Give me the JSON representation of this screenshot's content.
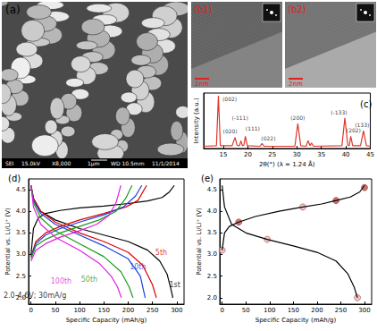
{
  "panels": [
    {
      "title": "(a)",
      "info": [
        "SEI",
        "15.0kV",
        "X8,000",
        "1μm",
        "WD 10.5mm",
        "11/1/2014"
      ]
    },
    {
      "title": "(b1)",
      "scale_bar": "2nm"
    },
    {
      "title": "(b2)",
      "scale_bar": "2nm"
    }
  ],
  "chart_data": [
    {
      "type": "line",
      "title": "(c)",
      "xlabel": "2θ(°) (λ = 1.24 Å)",
      "ylabel": "Intensity (a.u.)",
      "color": "#e0352b",
      "x": [
        11,
        13.6,
        14.0,
        14.4,
        16.8,
        17.4,
        17.8,
        18.3,
        18.6,
        18.9,
        19.2,
        19.5,
        19.9,
        22.5,
        22.9,
        23.3,
        29.6,
        30.2,
        30.8,
        31.9,
        32.3,
        32.7,
        33.0,
        33.4,
        39.2,
        39.8,
        40.4,
        40.7,
        41.0,
        41.4,
        43.0,
        43.6,
        44.2,
        45
      ],
      "values": [
        4,
        5,
        95,
        5,
        5,
        20,
        6,
        5,
        14,
        5,
        6,
        22,
        5,
        4,
        9,
        4,
        4,
        45,
        5,
        4,
        14,
        5,
        10,
        4,
        5,
        55,
        6,
        5,
        22,
        5,
        5,
        32,
        5,
        4
      ],
      "xlim": [
        11,
        45
      ],
      "xticks": [
        15,
        20,
        25,
        30,
        35,
        40,
        45
      ],
      "ylim": [
        0,
        100
      ],
      "tick_labels": "x",
      "annotations": [
        {
          "text": "(002)",
          "x": 16.3,
          "y": 90
        },
        {
          "text": "(020)",
          "x": 16.4,
          "y": 31
        },
        {
          "text": "(111)",
          "x": 21.0,
          "y": 36
        },
        {
          "text": "(-111)",
          "x": 18.4,
          "y": 56
        },
        {
          "text": "(022)",
          "x": 24.2,
          "y": 18
        },
        {
          "text": "(200)",
          "x": 30.2,
          "y": 56
        },
        {
          "text": "(-133)",
          "x": 38.6,
          "y": 66
        },
        {
          "text": "(202)",
          "x": 41.6,
          "y": 33
        },
        {
          "text": "(133)",
          "x": 43.3,
          "y": 43
        }
      ]
    },
    {
      "type": "line",
      "title": "(d)",
      "xlabel": "Specific Capacity (mAh/g)",
      "ylabel": "Potential vs. Li/Li⁺ (V)",
      "xlim": [
        -5,
        315
      ],
      "xticks": [
        0,
        50,
        100,
        150,
        200,
        250,
        300
      ],
      "ylim": [
        1.85,
        4.75
      ],
      "yticks": [
        {
          "value": 2,
          "label": "2.0"
        },
        2.5,
        {
          "value": 3,
          "label": "3.0"
        },
        3.5,
        {
          "value": 4,
          "label": "4.0"
        },
        4.5
      ],
      "annotations": [
        {
          "text": "2.0-4.6V; 30mA/g",
          "x": 8,
          "y": 2.05
        }
      ],
      "series": [
        {
          "name": "1st",
          "color": "#000000",
          "name_at": [
            296,
            2.3
          ],
          "x": [
            0,
            5,
            15,
            30,
            60,
            100,
            150,
            200,
            240,
            270,
            285,
            295,
            295,
            0,
            5,
            20,
            50,
            100,
            150,
            200,
            240,
            265,
            280,
            288,
            292
          ],
          "values": [
            3.0,
            3.6,
            3.85,
            3.95,
            4.02,
            4.08,
            4.12,
            4.18,
            4.24,
            4.32,
            4.45,
            4.6,
            null,
            4.6,
            4.3,
            4.0,
            3.8,
            3.6,
            3.45,
            3.3,
            3.1,
            2.85,
            2.55,
            2.2,
            2.0
          ]
        },
        {
          "name": "5th",
          "color": "#e00000",
          "name_at": [
            268,
            3.05
          ],
          "x": [
            0,
            10,
            30,
            60,
            100,
            150,
            195,
            220,
            238,
            238,
            0,
            5,
            20,
            50,
            100,
            150,
            200,
            230,
            250,
            258
          ],
          "values": [
            2.95,
            3.3,
            3.5,
            3.65,
            3.8,
            3.95,
            4.1,
            4.25,
            4.6,
            null,
            4.6,
            4.3,
            4.0,
            3.75,
            3.5,
            3.3,
            3.05,
            2.75,
            2.3,
            2.0
          ]
        },
        {
          "name": "10th",
          "color": "#1a3fe0",
          "name_at": [
            220,
            2.72
          ],
          "x": [
            0,
            10,
            30,
            60,
            100,
            150,
            190,
            215,
            228,
            228,
            0,
            5,
            20,
            50,
            100,
            150,
            200,
            225,
            235
          ],
          "values": [
            2.95,
            3.25,
            3.45,
            3.6,
            3.75,
            3.92,
            4.1,
            4.35,
            4.6,
            null,
            4.6,
            4.25,
            3.95,
            3.7,
            3.45,
            3.2,
            2.9,
            2.5,
            2.0
          ]
        },
        {
          "name": "50th",
          "color": "#1a9a1a",
          "name_at": [
            120,
            2.42
          ],
          "x": [
            0,
            10,
            30,
            60,
            100,
            140,
            175,
            195,
            208,
            208,
            0,
            5,
            20,
            50,
            100,
            150,
            185,
            202,
            210
          ],
          "values": [
            2.9,
            3.2,
            3.35,
            3.5,
            3.65,
            3.8,
            4.0,
            4.3,
            4.6,
            null,
            4.6,
            4.2,
            3.85,
            3.55,
            3.25,
            2.95,
            2.6,
            2.25,
            2.0
          ]
        },
        {
          "name": "100th",
          "color": "#e020e0",
          "name_at": [
            62,
            2.38
          ],
          "x": [
            0,
            10,
            30,
            60,
            100,
            135,
            160,
            175,
            185,
            185,
            0,
            5,
            20,
            50,
            100,
            140,
            165,
            178,
            186
          ],
          "values": [
            2.85,
            3.1,
            3.25,
            3.4,
            3.55,
            3.7,
            3.9,
            4.2,
            4.6,
            null,
            4.6,
            4.1,
            3.7,
            3.4,
            3.1,
            2.8,
            2.5,
            2.25,
            2.0
          ]
        }
      ]
    },
    {
      "type": "line",
      "title": "(e)",
      "xlabel": "Specific Capacity (mAh/g)",
      "ylabel": "Potential vs. Li/Li⁺ (V)",
      "xlim": [
        -5,
        315
      ],
      "xticks": [
        0,
        50,
        100,
        150,
        200,
        250,
        300
      ],
      "ylim": [
        1.85,
        4.75
      ],
      "yticks": [
        {
          "value": 2,
          "label": "2.0"
        },
        2.5,
        {
          "value": 3,
          "label": "3.0"
        },
        3.5,
        {
          "value": 4,
          "label": "4.0"
        },
        4.5
      ],
      "series": [
        {
          "type": "line",
          "color": "#000000",
          "x": [
            0,
            5,
            15,
            35,
            70,
            120,
            170,
            210,
            240,
            270,
            290,
            300,
            300,
            0,
            5,
            20,
            50,
            95,
            150,
            200,
            240,
            265,
            278,
            285
          ],
          "values": [
            3.1,
            3.5,
            3.65,
            3.75,
            3.88,
            4.0,
            4.1,
            4.17,
            4.25,
            4.33,
            4.45,
            4.6,
            null,
            4.6,
            4.1,
            3.7,
            3.5,
            3.35,
            3.2,
            3.05,
            2.85,
            2.55,
            2.25,
            2.0
          ]
        },
        {
          "type": "scatter",
          "marker": "circle",
          "color": "#c0504d",
          "x": [
            35,
            240,
            300
          ],
          "values": [
            3.75,
            4.25,
            4.55
          ]
        },
        {
          "type": "scatter",
          "marker": "circle",
          "color": "#f4b6b6",
          "x": [
            0,
            95,
            170,
            285
          ],
          "values": [
            3.1,
            3.35,
            4.1,
            2.0
          ]
        }
      ]
    }
  ]
}
